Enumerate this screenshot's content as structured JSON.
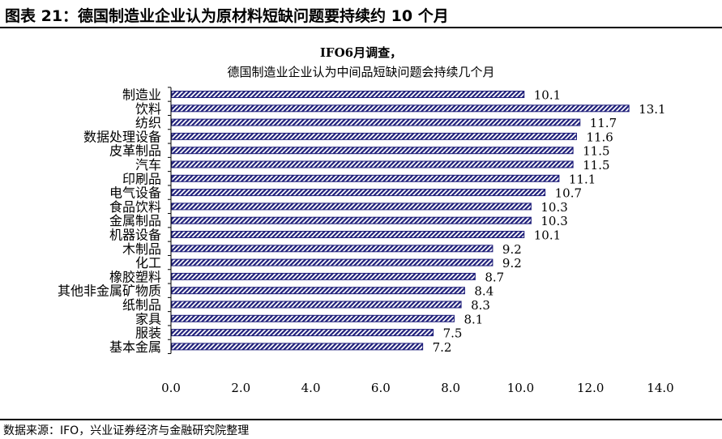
{
  "figure": {
    "title": "图表 21：德国制造业企业认为原材料短缺问题要持续约 10 个月",
    "source": "数据来源：IFO，兴业证券经济与金融研究院整理"
  },
  "chart_data": {
    "type": "bar",
    "orientation": "horizontal",
    "title": "IFO6月调查，",
    "subtitle": "德国制造业企业认为中间品短缺问题会持续几个月",
    "categories": [
      "制造业",
      "饮料",
      "纺织",
      "数据处理设备",
      "皮革制品",
      "汽车",
      "印刷品",
      "电气设备",
      "食品饮料",
      "金属制品",
      "机器设备",
      "木制品",
      "化工",
      "橡胶塑料",
      "其他非金属矿物质",
      "纸制品",
      "家具",
      "服装",
      "基本金属"
    ],
    "values": [
      10.1,
      13.1,
      11.7,
      11.6,
      11.5,
      11.5,
      11.1,
      10.7,
      10.3,
      10.3,
      10.1,
      9.2,
      9.2,
      8.7,
      8.4,
      8.3,
      8.1,
      7.5,
      7.2
    ],
    "x_ticks": [
      "0.0",
      "2.0",
      "4.0",
      "6.0",
      "8.0",
      "10.0",
      "12.0",
      "14.0"
    ],
    "xlim": [
      0,
      14
    ],
    "bar_fill": "diagonal-hatch",
    "bar_color": "#1f1f7a",
    "grid": false,
    "legend": "none"
  }
}
